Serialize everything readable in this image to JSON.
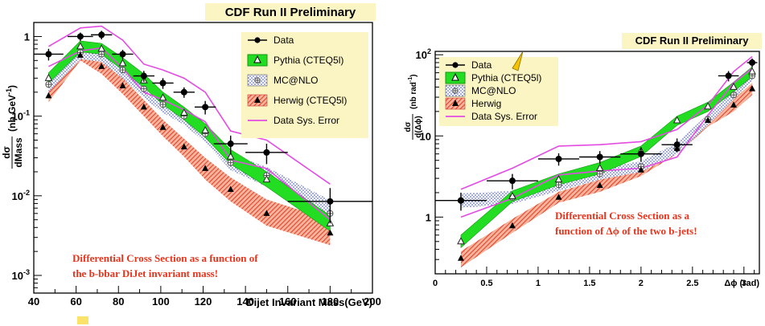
{
  "chart_data": [
    {
      "type": "line",
      "title": "CDF Run II Preliminary",
      "xlabel": "Dijet Invariant Mass(GeV)",
      "ylabel": "dσ/dMass (nb GeV⁻¹)",
      "ylabel_frac_num": "dσ",
      "ylabel_frac_den": "dMass",
      "ylabel_units": "(nb GeV",
      "ylabel_units_sup": "-1",
      "ylabel_units_close": ")",
      "xlim": [
        40,
        200
      ],
      "ylim": [
        0.0006,
        1.5
      ],
      "yscale": "log",
      "xticks": [
        40,
        60,
        80,
        100,
        120,
        140,
        160,
        180,
        200
      ],
      "yticks": [
        {
          "value": 1,
          "label": "1"
        },
        {
          "value": 0.1,
          "base": "10",
          "exp": "-1"
        },
        {
          "value": 0.01,
          "base": "10",
          "exp": "-2"
        },
        {
          "value": 0.001,
          "base": "10",
          "exp": "-3"
        }
      ],
      "legend_position": "top-right",
      "legend": [
        "Data",
        "Pythia (CTEQ5l)",
        "MC@NLO",
        "Herwig (CTEQ5l)",
        "Data Sys. Error"
      ],
      "annotation": [
        "Differential Cross Section as a function of",
        "the b-bbar DiJet invariant mass!"
      ],
      "series": [
        {
          "name": "Data",
          "x": [
            47,
            62,
            72,
            82,
            92,
            101,
            111,
            121,
            133,
            150,
            180
          ],
          "y": [
            0.6,
            1.0,
            1.05,
            0.6,
            0.32,
            0.26,
            0.2,
            0.13,
            0.045,
            0.035,
            0.0085
          ],
          "xerr": [
            7,
            6,
            5,
            5,
            5,
            5,
            5,
            5,
            8,
            10,
            20
          ],
          "yerr": [
            0.1,
            0.12,
            0.13,
            0.08,
            0.05,
            0.04,
            0.03,
            0.025,
            0.012,
            0.01,
            0.004
          ]
        },
        {
          "name": "Pythia (CTEQ5l)",
          "x": [
            47,
            62,
            72,
            82,
            92,
            101,
            111,
            121,
            133,
            150,
            180
          ],
          "y": [
            0.3,
            0.75,
            0.7,
            0.46,
            0.28,
            0.17,
            0.11,
            0.066,
            0.031,
            0.016,
            0.0045
          ],
          "band_low": [
            0.26,
            0.64,
            0.6,
            0.38,
            0.23,
            0.14,
            0.09,
            0.054,
            0.025,
            0.013,
            0.0036
          ],
          "band_high": [
            0.35,
            0.88,
            0.82,
            0.54,
            0.34,
            0.2,
            0.13,
            0.08,
            0.038,
            0.02,
            0.0056
          ]
        },
        {
          "name": "MC@NLO",
          "x": [
            47,
            62,
            72,
            82,
            92,
            101,
            111,
            121,
            133,
            150,
            180
          ],
          "y": [
            0.25,
            0.63,
            0.6,
            0.38,
            0.22,
            0.14,
            0.1,
            0.06,
            0.026,
            0.018,
            0.006
          ],
          "band_low": [
            0.2,
            0.52,
            0.48,
            0.3,
            0.17,
            0.11,
            0.078,
            0.047,
            0.021,
            0.013,
            0.0043
          ],
          "band_high": [
            0.31,
            0.75,
            0.72,
            0.46,
            0.28,
            0.18,
            0.13,
            0.08,
            0.034,
            0.023,
            0.0088
          ]
        },
        {
          "name": "Herwig (CTEQ5l)",
          "x": [
            47,
            62,
            72,
            82,
            92,
            101,
            111,
            121,
            133,
            150,
            180
          ],
          "y": [
            0.18,
            0.58,
            0.42,
            0.24,
            0.13,
            0.072,
            0.041,
            0.022,
            0.012,
            0.006,
            0.0034
          ],
          "band_low": [
            0.15,
            0.5,
            0.34,
            0.19,
            0.1,
            0.056,
            0.031,
            0.016,
            0.0085,
            0.0042,
            0.0024
          ],
          "band_high": [
            0.22,
            0.66,
            0.5,
            0.3,
            0.16,
            0.09,
            0.052,
            0.03,
            0.017,
            0.009,
            0.005
          ]
        },
        {
          "name": "Data Sys. Error",
          "x": [
            47,
            62,
            72,
            82,
            92,
            101,
            111,
            121,
            133,
            150,
            180
          ],
          "upper": [
            0.75,
            1.28,
            1.35,
            0.9,
            0.45,
            0.38,
            0.3,
            0.2,
            0.065,
            0.05,
            0.014
          ],
          "lower": [
            0.42,
            0.66,
            0.72,
            0.4,
            0.2,
            0.16,
            0.12,
            0.085,
            0.028,
            0.022,
            0.005
          ]
        }
      ]
    },
    {
      "type": "line",
      "title": "CDF Run II Preliminary",
      "xlabel": "Δϕ (rad)",
      "ylabel": "dσ/d(Δϕ) (nb rad⁻¹)",
      "ylabel_frac_num": "dσ",
      "ylabel_frac_den": "d(Δϕ)",
      "ylabel_units": "(nb rad",
      "ylabel_units_sup": "-1",
      "ylabel_units_close": ")",
      "xlim": [
        0,
        3.15
      ],
      "ylim": [
        0.2,
        110
      ],
      "yscale": "log",
      "xticks": [
        0,
        0.5,
        1,
        1.5,
        2,
        2.5,
        3
      ],
      "yticks": [
        {
          "value": 100,
          "base": "10",
          "exp": "2"
        },
        {
          "value": 10,
          "label": "10"
        },
        {
          "value": 1,
          "label": "1"
        }
      ],
      "legend_position": "top-left",
      "legend": [
        "Data",
        "Pythia (CTEQ5l)",
        "MC@NLO",
        "Herwig",
        "Data Sys. Error"
      ],
      "annotation": [
        "Differential Cross Section as a",
        "function of Δϕ of the two b-jets!"
      ],
      "series": [
        {
          "name": "Data",
          "x": [
            0.25,
            0.75,
            1.2,
            1.6,
            2.0,
            2.35,
            2.85,
            3.08
          ],
          "y": [
            1.6,
            2.8,
            5.2,
            5.5,
            6.0,
            7.8,
            55,
            80
          ],
          "xerr": [
            0.25,
            0.25,
            0.2,
            0.2,
            0.2,
            0.15,
            0.1,
            0.05
          ],
          "yerr": [
            0.4,
            0.6,
            0.9,
            1.0,
            1.2,
            1.5,
            8,
            10
          ]
        },
        {
          "name": "Pythia (CTEQ5l)",
          "x": [
            0.25,
            0.75,
            1.2,
            1.6,
            2.0,
            2.35,
            2.65,
            2.9,
            3.08
          ],
          "y": [
            0.5,
            1.8,
            2.9,
            4.0,
            6.5,
            15.5,
            23,
            40,
            62
          ],
          "band_low": [
            0.42,
            1.55,
            2.5,
            3.4,
            5.6,
            13.5,
            20,
            35,
            54
          ],
          "band_high": [
            0.6,
            2.1,
            3.4,
            4.7,
            7.5,
            17.5,
            26,
            46,
            71
          ]
        },
        {
          "name": "MC@NLO",
          "x": [
            0.25,
            0.75,
            1.2,
            1.6,
            2.0,
            2.35,
            2.65,
            2.9,
            3.08
          ],
          "y": [
            1.6,
            1.75,
            2.5,
            3.4,
            4.2,
            7.0,
            16,
            32,
            55
          ],
          "band_low": [
            1.3,
            1.45,
            2.1,
            2.9,
            3.6,
            6.0,
            13.5,
            28,
            48
          ],
          "band_high": [
            1.95,
            2.1,
            2.9,
            3.9,
            4.9,
            8.2,
            18.5,
            37,
            63
          ]
        },
        {
          "name": "Herwig",
          "x": [
            0.25,
            0.75,
            1.2,
            1.6,
            2.0,
            2.35,
            2.65,
            2.9,
            3.08
          ],
          "y": [
            0.31,
            0.78,
            1.75,
            2.45,
            3.8,
            7.0,
            15.5,
            24,
            38
          ],
          "band_low": [
            0.24,
            0.64,
            1.5,
            2.05,
            3.2,
            6.0,
            13,
            20,
            32
          ],
          "band_high": [
            0.38,
            0.95,
            2.05,
            2.9,
            4.5,
            8.2,
            18.5,
            28.5,
            45
          ]
        },
        {
          "name": "Data Sys. Error",
          "x": [
            0.25,
            0.75,
            1.2,
            1.6,
            2.0,
            2.35,
            2.65,
            2.9,
            3.08
          ],
          "upper": [
            2.2,
            4.0,
            7.5,
            7.8,
            8.5,
            12,
            24,
            62,
            95
          ],
          "lower": [
            1.0,
            1.7,
            3.3,
            3.7,
            4.0,
            5.5,
            18,
            45,
            68
          ]
        }
      ]
    }
  ]
}
